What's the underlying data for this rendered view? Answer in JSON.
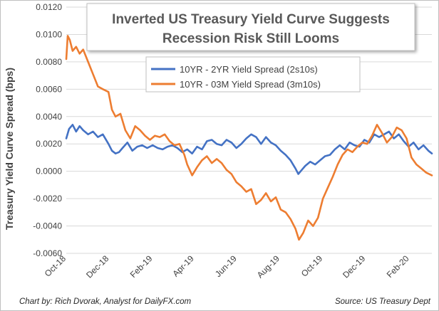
{
  "chart_data": {
    "type": "line",
    "title": [
      "Inverted US Treasury Yield Curve Suggests",
      "Recession Risk Still Looms"
    ],
    "ylabel": "Treasury Yield Curve Spread (bps)",
    "xlabel": "",
    "ylim": [
      -0.006,
      0.012
    ],
    "yticks": [
      -0.006,
      -0.004,
      -0.002,
      0.0,
      0.002,
      0.004,
      0.006,
      0.008,
      0.01,
      0.012
    ],
    "ytick_labels": [
      "-0.0060",
      "-0.0040",
      "-0.0020",
      "0.0000",
      "0.0020",
      "0.0040",
      "0.0060",
      "0.0080",
      "0.0100",
      "0.0120"
    ],
    "xlim": [
      "2018-10-01",
      "2020-03-04"
    ],
    "xticks": [
      "2018-10-01",
      "2018-12-01",
      "2019-02-01",
      "2019-04-01",
      "2019-06-01",
      "2019-08-01",
      "2019-10-01",
      "2019-12-01",
      "2020-02-01"
    ],
    "xtick_labels": [
      "Oct-18",
      "Dec-18",
      "Feb-19",
      "Apr-19",
      "Jun-19",
      "Aug-19",
      "Oct-19",
      "Dec-19",
      "Feb-20"
    ],
    "grid": "horizontal",
    "legend_position": "top-center",
    "series": [
      {
        "name": "10YR - 2YR Yield Spread (2s10s)",
        "color": "#4472c4",
        "x": [
          "2018-10-01",
          "2018-10-05",
          "2018-10-10",
          "2018-10-15",
          "2018-10-20",
          "2018-10-25",
          "2018-11-01",
          "2018-11-08",
          "2018-11-15",
          "2018-11-22",
          "2018-11-30",
          "2018-12-05",
          "2018-12-10",
          "2018-12-15",
          "2018-12-20",
          "2018-12-27",
          "2019-01-03",
          "2019-01-10",
          "2019-01-17",
          "2019-01-24",
          "2019-02-01",
          "2019-02-08",
          "2019-02-15",
          "2019-02-22",
          "2019-03-01",
          "2019-03-08",
          "2019-03-15",
          "2019-03-22",
          "2019-03-29",
          "2019-04-05",
          "2019-04-12",
          "2019-04-19",
          "2019-04-26",
          "2019-05-03",
          "2019-05-10",
          "2019-05-17",
          "2019-05-24",
          "2019-05-31",
          "2019-06-07",
          "2019-06-14",
          "2019-06-21",
          "2019-06-28",
          "2019-07-05",
          "2019-07-12",
          "2019-07-19",
          "2019-07-26",
          "2019-08-02",
          "2019-08-09",
          "2019-08-16",
          "2019-08-23",
          "2019-08-27",
          "2019-09-01",
          "2019-09-06",
          "2019-09-13",
          "2019-09-20",
          "2019-09-27",
          "2019-10-04",
          "2019-10-11",
          "2019-10-18",
          "2019-10-25",
          "2019-11-01",
          "2019-11-08",
          "2019-11-15",
          "2019-11-22",
          "2019-11-29",
          "2019-12-06",
          "2019-12-13",
          "2019-12-20",
          "2019-12-27",
          "2020-01-03",
          "2020-01-10",
          "2020-01-17",
          "2020-01-24",
          "2020-01-31",
          "2020-02-07",
          "2020-02-14",
          "2020-02-21",
          "2020-02-28",
          "2020-03-04"
        ],
        "values": [
          0.0024,
          0.0031,
          0.0034,
          0.0029,
          0.0033,
          0.003,
          0.0027,
          0.0029,
          0.0025,
          0.0027,
          0.002,
          0.0015,
          0.0013,
          0.0014,
          0.0017,
          0.0021,
          0.0015,
          0.0018,
          0.0019,
          0.0017,
          0.0019,
          0.0017,
          0.0016,
          0.0018,
          0.0019,
          0.0017,
          0.0014,
          0.0016,
          0.0013,
          0.0018,
          0.0016,
          0.0022,
          0.0023,
          0.002,
          0.0019,
          0.0023,
          0.0021,
          0.0017,
          0.002,
          0.0024,
          0.0027,
          0.0025,
          0.002,
          0.0025,
          0.0021,
          0.0019,
          0.0015,
          0.0012,
          0.0008,
          0.0002,
          -0.0002,
          0.0001,
          0.0004,
          0.0007,
          0.0005,
          0.0008,
          0.0011,
          0.0012,
          0.0016,
          0.0019,
          0.0016,
          0.0021,
          0.0019,
          0.0018,
          0.0023,
          0.0021,
          0.0027,
          0.0025,
          0.0027,
          0.0029,
          0.0024,
          0.0027,
          0.0022,
          0.0018,
          0.0021,
          0.0016,
          0.0019,
          0.0015,
          0.0013
        ]
      },
      {
        "name": "10YR - 03M Yield Spread (3m10s)",
        "color": "#ed7d31",
        "x": [
          "2018-10-01",
          "2018-10-03",
          "2018-10-06",
          "2018-10-10",
          "2018-10-15",
          "2018-10-20",
          "2018-10-25",
          "2018-11-01",
          "2018-11-08",
          "2018-11-15",
          "2018-11-22",
          "2018-11-30",
          "2018-12-05",
          "2018-12-10",
          "2018-12-17",
          "2018-12-24",
          "2018-12-31",
          "2019-01-07",
          "2019-01-14",
          "2019-01-21",
          "2019-01-28",
          "2019-02-04",
          "2019-02-11",
          "2019-02-18",
          "2019-02-25",
          "2019-03-04",
          "2019-03-11",
          "2019-03-18",
          "2019-03-22",
          "2019-03-29",
          "2019-04-05",
          "2019-04-12",
          "2019-04-19",
          "2019-04-26",
          "2019-05-03",
          "2019-05-10",
          "2019-05-17",
          "2019-05-24",
          "2019-05-31",
          "2019-06-07",
          "2019-06-14",
          "2019-06-21",
          "2019-06-28",
          "2019-07-05",
          "2019-07-12",
          "2019-07-19",
          "2019-07-26",
          "2019-08-02",
          "2019-08-09",
          "2019-08-16",
          "2019-08-23",
          "2019-08-28",
          "2019-09-03",
          "2019-09-10",
          "2019-09-17",
          "2019-09-24",
          "2019-10-01",
          "2019-10-08",
          "2019-10-15",
          "2019-10-22",
          "2019-10-29",
          "2019-11-05",
          "2019-11-12",
          "2019-11-19",
          "2019-11-26",
          "2019-12-03",
          "2019-12-10",
          "2019-12-17",
          "2019-12-24",
          "2019-12-31",
          "2020-01-07",
          "2020-01-14",
          "2020-01-21",
          "2020-01-28",
          "2020-02-04",
          "2020-02-11",
          "2020-02-18",
          "2020-02-25",
          "2020-03-04"
        ],
        "values": [
          0.0082,
          0.0099,
          0.0096,
          0.0088,
          0.0091,
          0.0086,
          0.0089,
          0.008,
          0.0071,
          0.0062,
          0.006,
          0.0058,
          0.0045,
          0.004,
          0.0042,
          0.003,
          0.0024,
          0.0033,
          0.003,
          0.0026,
          0.0023,
          0.0026,
          0.0025,
          0.0027,
          0.0022,
          0.0019,
          0.002,
          0.0012,
          0.0005,
          -0.0003,
          0.0003,
          0.0008,
          0.0011,
          0.0006,
          0.0009,
          0.0006,
          0.0001,
          -0.0002,
          -0.0008,
          -0.0011,
          -0.0015,
          -0.0013,
          -0.0024,
          -0.0021,
          -0.0016,
          -0.0022,
          -0.0019,
          -0.0028,
          -0.003,
          -0.0035,
          -0.0042,
          -0.005,
          -0.0045,
          -0.0036,
          -0.004,
          -0.0034,
          -0.002,
          -0.0012,
          -0.0004,
          0.0005,
          0.0012,
          0.0016,
          0.0014,
          0.0018,
          0.0021,
          0.002,
          0.0026,
          0.0034,
          0.0028,
          0.0021,
          0.0025,
          0.0032,
          0.003,
          0.0024,
          0.001,
          0.0005,
          0.0002,
          -0.0001,
          -0.0003
        ]
      }
    ]
  },
  "footer": {
    "credit": "Chart by: Rich Dvorak, Analyst for DailyFX.com",
    "source": "Source: US Treasury Dept"
  }
}
